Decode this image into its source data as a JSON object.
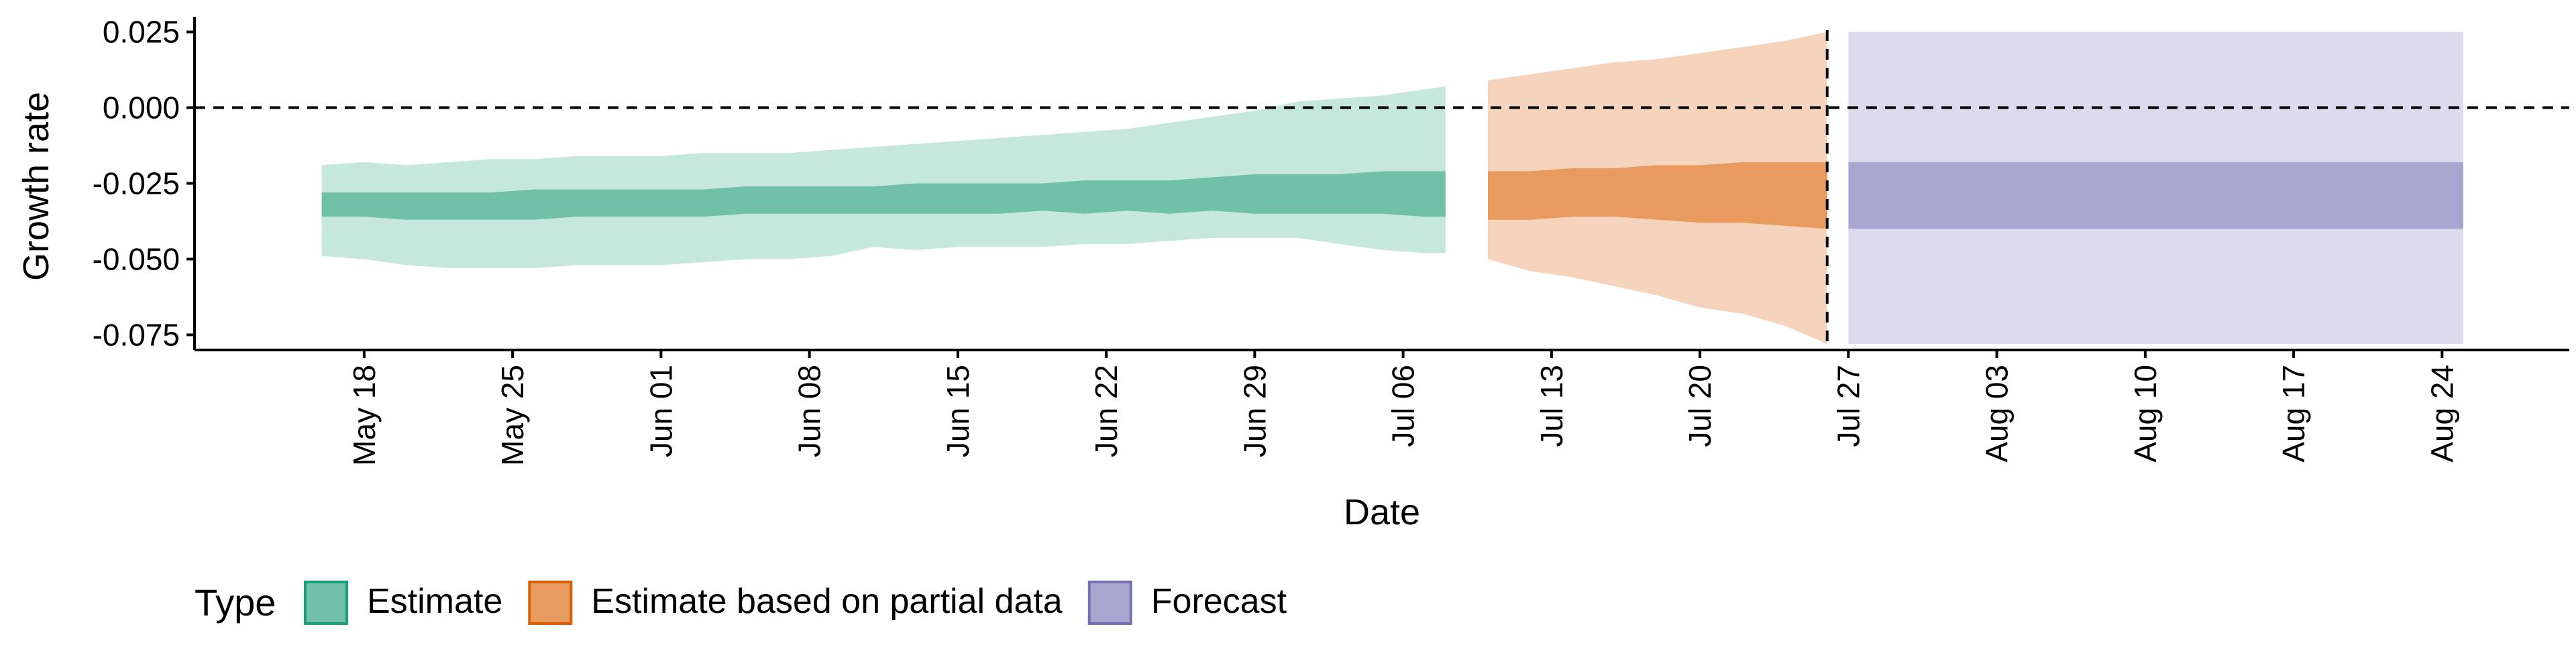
{
  "chart_data": {
    "type": "area",
    "title": "",
    "xlabel": "Date",
    "ylabel": "Growth rate",
    "ylim": [
      -0.08,
      0.03
    ],
    "xlim": [
      "2020-05-10",
      "2020-08-30"
    ],
    "y_ticks": [
      -0.075,
      -0.05,
      -0.025,
      0.0,
      0.025
    ],
    "y_tick_labels": [
      "-0.075",
      "-0.050",
      "-0.025",
      "0.000",
      "0.025"
    ],
    "x_ticks": [
      "2020-05-18",
      "2020-05-25",
      "2020-06-01",
      "2020-06-08",
      "2020-06-15",
      "2020-06-22",
      "2020-06-29",
      "2020-07-06",
      "2020-07-13",
      "2020-07-20",
      "2020-07-27",
      "2020-08-03",
      "2020-08-10",
      "2020-08-17",
      "2020-08-24"
    ],
    "x_tick_labels": [
      "May 18",
      "May 25",
      "Jun 01",
      "Jun 08",
      "Jun 15",
      "Jun 22",
      "Jun 29",
      "Jul 06",
      "Jul 13",
      "Jul 20",
      "Jul 27",
      "Aug 03",
      "Aug 10",
      "Aug 17",
      "Aug 24"
    ],
    "reference_lines": {
      "horizontal_y": 0.0,
      "vertical_x": "2020-07-26"
    },
    "grid": false,
    "legend": {
      "title": "Type",
      "placement": "bottom-left",
      "entries": [
        {
          "label": "Estimate",
          "fill": "#70c1a8",
          "stroke": "#1b9e77"
        },
        {
          "label": "Estimate based on partial data",
          "fill": "#e89a5f",
          "stroke": "#d95f02"
        },
        {
          "label": "Forecast",
          "fill": "#a9a5d1",
          "stroke": "#7570b3"
        }
      ]
    },
    "series": [
      {
        "name": "Estimate",
        "colors": {
          "outer": "#c6e7dc",
          "inner": "#70c1a8"
        },
        "x": [
          "2020-05-16",
          "2020-05-18",
          "2020-05-20",
          "2020-05-22",
          "2020-05-24",
          "2020-05-26",
          "2020-05-28",
          "2020-05-30",
          "2020-06-01",
          "2020-06-03",
          "2020-06-05",
          "2020-06-07",
          "2020-06-09",
          "2020-06-11",
          "2020-06-13",
          "2020-06-15",
          "2020-06-17",
          "2020-06-19",
          "2020-06-21",
          "2020-06-23",
          "2020-06-25",
          "2020-06-27",
          "2020-06-29",
          "2020-07-01",
          "2020-07-03",
          "2020-07-05",
          "2020-07-07",
          "2020-07-08"
        ],
        "outer_lower": [
          -0.049,
          -0.05,
          -0.052,
          -0.053,
          -0.053,
          -0.053,
          -0.052,
          -0.052,
          -0.052,
          -0.051,
          -0.05,
          -0.05,
          -0.049,
          -0.046,
          -0.047,
          -0.046,
          -0.046,
          -0.046,
          -0.045,
          -0.045,
          -0.044,
          -0.043,
          -0.043,
          -0.043,
          -0.045,
          -0.047,
          -0.048,
          -0.048
        ],
        "outer_upper": [
          -0.019,
          -0.018,
          -0.019,
          -0.018,
          -0.017,
          -0.017,
          -0.016,
          -0.016,
          -0.016,
          -0.015,
          -0.015,
          -0.015,
          -0.014,
          -0.013,
          -0.012,
          -0.011,
          -0.01,
          -0.009,
          -0.008,
          -0.007,
          -0.005,
          -0.003,
          -0.001,
          0.002,
          0.003,
          0.004,
          0.006,
          0.007
        ],
        "inner_lower": [
          -0.036,
          -0.036,
          -0.037,
          -0.037,
          -0.037,
          -0.037,
          -0.036,
          -0.036,
          -0.036,
          -0.036,
          -0.035,
          -0.035,
          -0.035,
          -0.035,
          -0.035,
          -0.035,
          -0.035,
          -0.034,
          -0.035,
          -0.034,
          -0.035,
          -0.034,
          -0.035,
          -0.035,
          -0.035,
          -0.035,
          -0.036,
          -0.036
        ],
        "inner_upper": [
          -0.028,
          -0.028,
          -0.028,
          -0.028,
          -0.028,
          -0.027,
          -0.027,
          -0.027,
          -0.027,
          -0.027,
          -0.026,
          -0.026,
          -0.026,
          -0.026,
          -0.025,
          -0.025,
          -0.025,
          -0.025,
          -0.024,
          -0.024,
          -0.024,
          -0.023,
          -0.022,
          -0.022,
          -0.022,
          -0.021,
          -0.021,
          -0.021
        ]
      },
      {
        "name": "Estimate based on partial data",
        "colors": {
          "outer": "#f5d3bd",
          "inner": "#e89a5f"
        },
        "x": [
          "2020-07-10",
          "2020-07-12",
          "2020-07-14",
          "2020-07-16",
          "2020-07-18",
          "2020-07-20",
          "2020-07-22",
          "2020-07-24",
          "2020-07-26"
        ],
        "outer_lower": [
          -0.05,
          -0.054,
          -0.056,
          -0.059,
          -0.062,
          -0.066,
          -0.068,
          -0.072,
          -0.078
        ],
        "outer_upper": [
          0.009,
          0.011,
          0.013,
          0.015,
          0.016,
          0.018,
          0.02,
          0.022,
          0.025
        ],
        "inner_lower": [
          -0.037,
          -0.037,
          -0.036,
          -0.036,
          -0.037,
          -0.038,
          -0.038,
          -0.039,
          -0.04
        ],
        "inner_upper": [
          -0.021,
          -0.021,
          -0.02,
          -0.02,
          -0.019,
          -0.019,
          -0.018,
          -0.018,
          -0.018
        ]
      },
      {
        "name": "Forecast",
        "colors": {
          "outer": "#dcdaec",
          "inner": "#a9a5d1"
        },
        "x": [
          "2020-07-27",
          "2020-08-25"
        ],
        "outer_lower": [
          -0.078,
          -0.078
        ],
        "outer_upper": [
          0.025,
          0.025
        ],
        "inner_lower": [
          -0.04,
          -0.04
        ],
        "inner_upper": [
          -0.018,
          -0.018
        ]
      }
    ]
  }
}
